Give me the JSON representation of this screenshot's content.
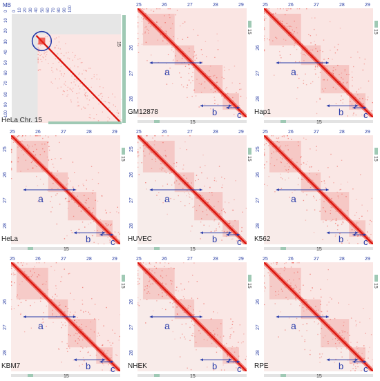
{
  "colors": {
    "contact": "#e8281e",
    "background": "#f2f2f2",
    "annotation": "#2438a8",
    "track": "#9fc9b4",
    "axis_text": "#2b3fa3"
  },
  "panel1": {
    "cell_line": "HeLa",
    "chromosome_label": "Chr. 15",
    "axis_unit": "MB",
    "axis_ticks": [
      "0",
      "10",
      "20",
      "30",
      "40",
      "50",
      "60",
      "70",
      "80",
      "90",
      "100"
    ],
    "right_label": "15"
  },
  "panels": [
    {
      "name": "GM12878",
      "ticks_top": [
        "25",
        "26",
        "27",
        "28",
        "29"
      ],
      "ticks_left": [
        "26",
        "27",
        "28"
      ],
      "chr": "15",
      "labels": [
        "a",
        "b",
        "c"
      ]
    },
    {
      "name": "Hap1",
      "ticks_top": [
        "25",
        "26",
        "27",
        "28",
        "29"
      ],
      "ticks_left": [
        "26",
        "27",
        "28"
      ],
      "chr": "15",
      "labels": [
        "a",
        "b",
        "c"
      ]
    },
    {
      "name": "HeLa",
      "ticks_top": [
        "25",
        "26",
        "27",
        "28",
        "29"
      ],
      "ticks_left": [
        "25",
        "26",
        "27",
        "28"
      ],
      "chr": "15",
      "labels": [
        "a",
        "b",
        "c"
      ]
    },
    {
      "name": "HUVEC",
      "ticks_top": [
        "25",
        "26",
        "27",
        "28",
        "29"
      ],
      "ticks_left": [
        "25",
        "26",
        "27",
        "28"
      ],
      "chr": "15",
      "labels": [
        "a",
        "b",
        "c"
      ]
    },
    {
      "name": "K562",
      "ticks_top": [
        "25",
        "26",
        "27",
        "28",
        "29"
      ],
      "ticks_left": [
        "25",
        "26",
        "27",
        "28"
      ],
      "chr": "15",
      "labels": [
        "a",
        "b",
        "c"
      ]
    },
    {
      "name": "KBM7",
      "ticks_top": [
        "25",
        "26",
        "27",
        "28",
        "29"
      ],
      "ticks_left": [
        "26",
        "27",
        "28"
      ],
      "chr": "15",
      "labels": [
        "a",
        "b",
        "c"
      ]
    },
    {
      "name": "NHEK",
      "ticks_top": [
        "25",
        "26",
        "27",
        "28",
        "29"
      ],
      "ticks_left": [
        "26",
        "27",
        "28"
      ],
      "chr": "15",
      "labels": [
        "a",
        "b",
        "c"
      ]
    },
    {
      "name": "RPE",
      "ticks_top": [
        "25",
        "26",
        "27",
        "28",
        "29"
      ],
      "ticks_left": [
        "26",
        "27",
        "28"
      ],
      "chr": "15",
      "labels": [
        "a",
        "b",
        "c"
      ]
    }
  ]
}
